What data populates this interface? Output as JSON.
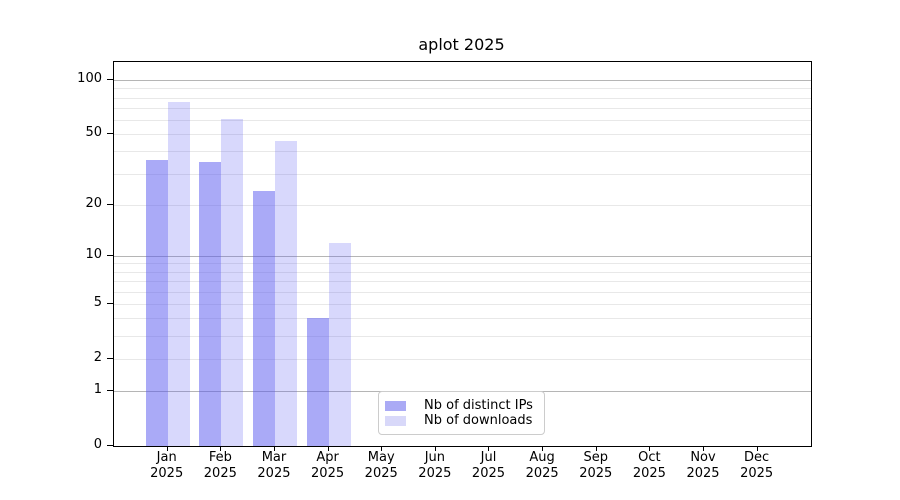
{
  "title": "aplot 2025",
  "chart_data": {
    "type": "bar",
    "title": "aplot 2025",
    "categories": [
      "Jan",
      "Feb",
      "Mar",
      "Apr",
      "May",
      "Jun",
      "Jul",
      "Aug",
      "Sep",
      "Oct",
      "Nov",
      "Dec"
    ],
    "year_label": "2025",
    "series": [
      {
        "name": "Nb of distinct IPs",
        "values": [
          36,
          35,
          24,
          4,
          0,
          0,
          0,
          0,
          0,
          0,
          0,
          0
        ],
        "legend_color": "#aaaaf5",
        "fill": "rgba(86,86,240,0.5)"
      },
      {
        "name": "Nb of downloads",
        "values": [
          76,
          61,
          46,
          12,
          0,
          0,
          0,
          0,
          0,
          0,
          0,
          0
        ],
        "legend_color": "#d8d8f9",
        "fill": "rgba(86,86,240,0.23)"
      }
    ],
    "y_scale": "log10(value+1)",
    "y_ticks": [
      0,
      1,
      2,
      5,
      10,
      20,
      50,
      100
    ],
    "y_major_gridlines": [
      1,
      10,
      100
    ],
    "y_minor_gridlines": [
      2,
      3,
      4,
      5,
      6,
      7,
      8,
      9,
      20,
      30,
      40,
      50,
      60,
      70,
      80,
      90
    ],
    "ylim": [
      0,
      127
    ],
    "grid": true,
    "legend_position": "lower center",
    "colors": {
      "bar_dark_on_white": "#aaaaf5",
      "bar_light_on_white": "#d8d8f9",
      "major_grid": "#b5b5b5",
      "minor_grid": "#e8e8e8",
      "spine": "#000000",
      "legend_border": "#cccccc"
    }
  }
}
